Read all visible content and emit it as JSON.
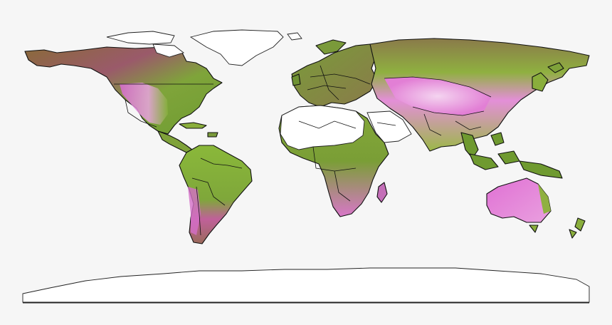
{
  "map": {
    "projection": "plate-carree",
    "legend": null,
    "colors": {
      "background": "#f6f6f6",
      "vegetation_green": "#7fae3c",
      "dry_pink": "#e07ad6",
      "desert_white": "#ffffff",
      "ice_white": "#ffffff",
      "border": "#111111",
      "brown": "#8b5a3c"
    },
    "regions": [
      "north-america",
      "greenland",
      "central-america",
      "south-america",
      "europe",
      "africa",
      "arabia",
      "asia",
      "southeast-asia",
      "australia",
      "new-zealand",
      "antarctica"
    ]
  }
}
